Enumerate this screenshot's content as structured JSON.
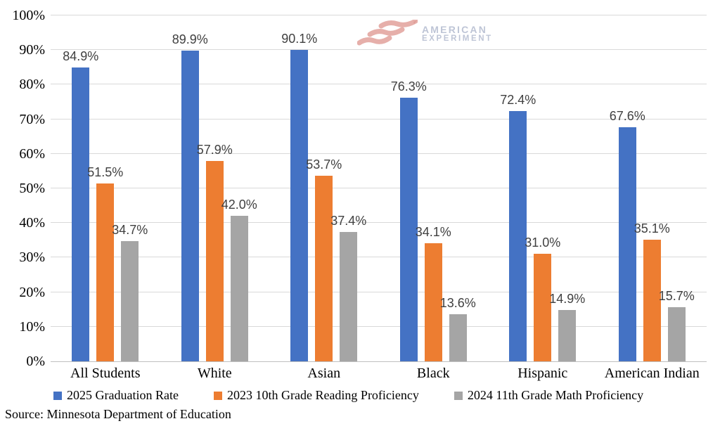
{
  "source": "Source: Minnesota Department of Education",
  "watermark": {
    "line1": "AMERICAN",
    "line2": "EXPERIMENT",
    "flag_color": "#E2A29C",
    "text_color": "#B3BBD0"
  },
  "style": {
    "gridline_color": "#D9D9D9",
    "axis_line_color": "#BFBFBF",
    "value_label_color": "#404040",
    "text_color": "#000000"
  },
  "chart_data": {
    "type": "bar",
    "categories": [
      "All Students",
      "White",
      "Asian",
      "Black",
      "Hispanic",
      "American Indian"
    ],
    "series": [
      {
        "name": "2025 Graduation Rate",
        "color": "#4472C4",
        "values": [
          84.9,
          89.9,
          90.1,
          76.3,
          72.4,
          67.6
        ]
      },
      {
        "name": "2023 10th Grade Reading Proficiency",
        "color": "#ED7D31",
        "values": [
          51.5,
          57.9,
          53.7,
          34.1,
          31.0,
          35.1
        ]
      },
      {
        "name": "2024 11th Grade Math Proficiency",
        "color": "#A5A5A5",
        "values": [
          34.7,
          42.0,
          37.4,
          13.6,
          14.9,
          15.7
        ]
      }
    ],
    "title": "",
    "xlabel": "",
    "ylabel": "",
    "ylim": [
      0,
      100
    ],
    "ytick_step": 10,
    "ytick_suffix": "%",
    "grid": true,
    "value_labels": true,
    "value_label_format": "one_decimal_percent",
    "legend_position": "bottom"
  }
}
